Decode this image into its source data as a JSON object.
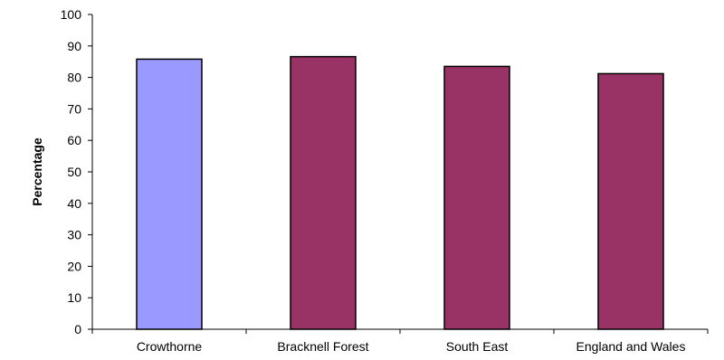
{
  "chart_data": {
    "type": "bar",
    "title": "",
    "xlabel": "",
    "ylabel": "Percentage",
    "ylim": [
      0,
      100
    ],
    "yticks": [
      0,
      10,
      20,
      30,
      40,
      50,
      60,
      70,
      80,
      90,
      100
    ],
    "categories": [
      "Crowthorne",
      "Bracknell Forest",
      "South East",
      "England and Wales"
    ],
    "values": [
      85.8,
      86.6,
      83.5,
      81.2
    ],
    "bar_colors": [
      "#9999ff",
      "#993366",
      "#993366",
      "#993366"
    ],
    "bar_edge_color": "#000000",
    "grid": false,
    "legend": "none"
  }
}
